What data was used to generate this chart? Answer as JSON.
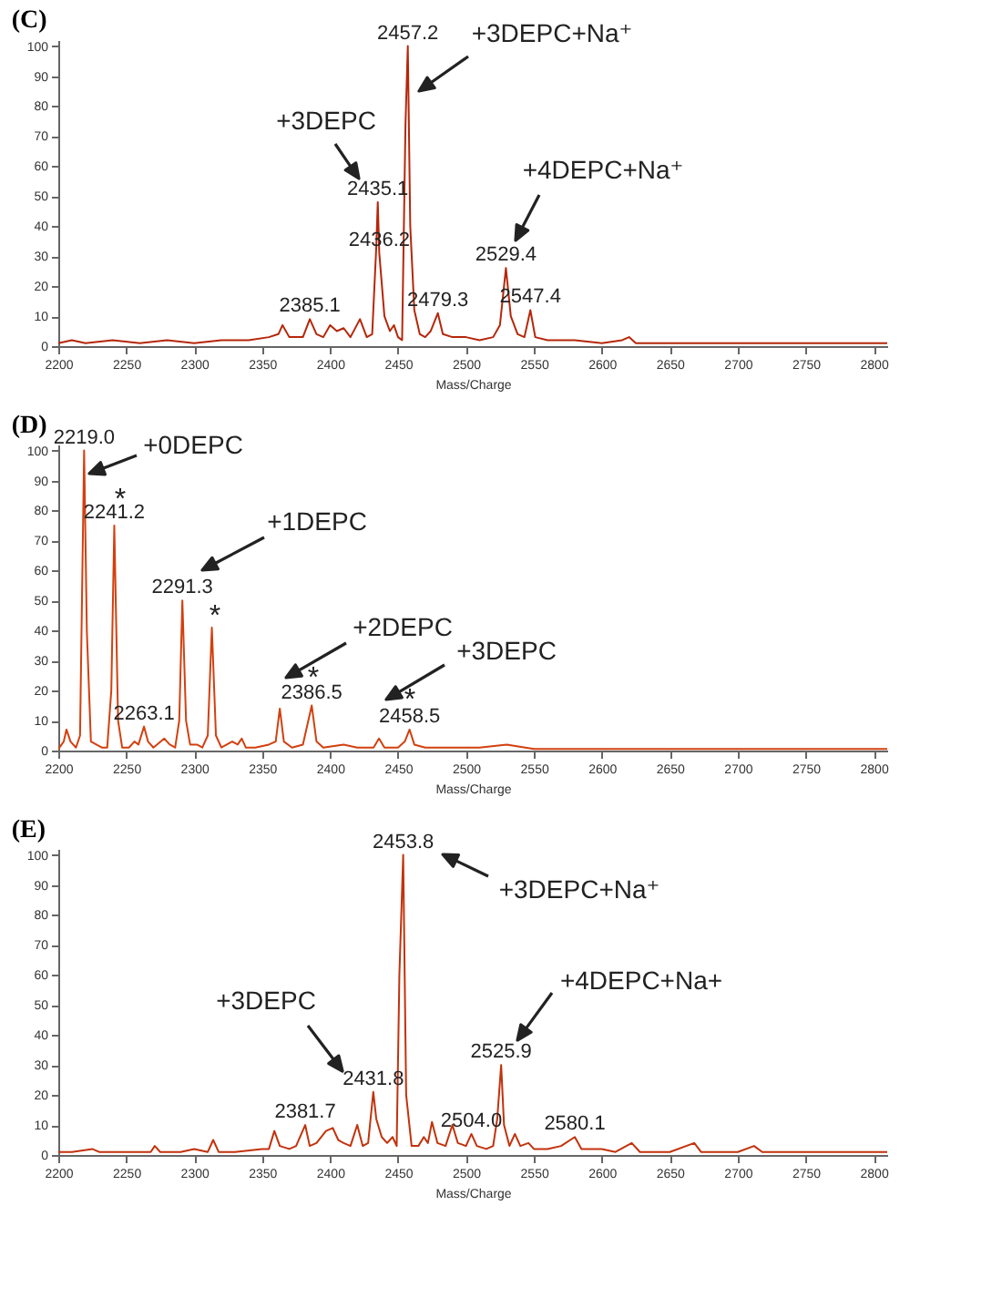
{
  "chart_data": [
    {
      "type": "line",
      "title": "(C)",
      "xlabel": "Mass/Charge",
      "xlim": [
        2200,
        2810
      ],
      "ylim": [
        0,
        102
      ],
      "xticks": [
        2200,
        2250,
        2300,
        2350,
        2400,
        2450,
        2500,
        2550,
        2600,
        2650,
        2700,
        2750,
        2800
      ],
      "yticks": [
        0,
        10,
        20,
        30,
        40,
        50,
        60,
        70,
        80,
        90,
        100
      ],
      "grid": false,
      "series": [
        {
          "color": "#b5270a",
          "x": [
            2200,
            2210,
            2220,
            2240,
            2260,
            2280,
            2300,
            2320,
            2340,
            2355,
            2362,
            2365,
            2370,
            2380,
            2385.1,
            2390,
            2395,
            2400,
            2405,
            2410,
            2415,
            2422,
            2427,
            2431,
            2434,
            2435.1,
            2436.2,
            2440,
            2444,
            2447,
            2450,
            2453,
            2455.5,
            2457.2,
            2459,
            2462,
            2466,
            2470,
            2474,
            2479.3,
            2483,
            2490,
            2500,
            2510,
            2520,
            2525,
            2529.4,
            2533,
            2538,
            2543,
            2547.4,
            2551,
            2560,
            2580,
            2600,
            2615,
            2620,
            2625,
            2650,
            2700,
            2750,
            2800,
            2810
          ],
          "values": [
            1,
            2,
            1,
            2,
            1,
            2,
            1,
            2,
            2,
            3,
            4,
            7,
            3,
            3,
            9,
            4,
            3,
            7,
            5,
            6,
            3,
            9,
            3,
            4,
            33,
            48,
            31,
            10,
            5,
            7,
            3,
            2,
            74,
            100,
            40,
            12,
            4,
            3,
            5,
            11,
            4,
            3,
            3,
            2,
            3,
            7,
            26,
            10,
            4,
            3,
            12,
            3,
            2,
            2,
            1,
            2,
            3,
            1,
            1,
            1,
            1,
            1,
            1
          ]
        }
      ],
      "annotations": [
        {
          "text": "2457.2",
          "x": 2457.2,
          "y": 100
        },
        {
          "text": "2435.1",
          "x": 2435.1,
          "y": 48
        },
        {
          "text": "2436.2",
          "x": 2436.2,
          "y": 31
        },
        {
          "text": "2385.1",
          "x": 2385.1,
          "y": 9
        },
        {
          "text": "2479.3",
          "x": 2479.3,
          "y": 11
        },
        {
          "text": "2529.4",
          "x": 2529.4,
          "y": 26
        },
        {
          "text": "2547.4",
          "x": 2547.4,
          "y": 12
        },
        "+3DEPC+Na⁺",
        "+3DEPC",
        "+4DEPC+Na⁺"
      ]
    },
    {
      "type": "line",
      "title": "(D)",
      "xlabel": "Mass/Charge",
      "xlim": [
        2200,
        2810
      ],
      "ylim": [
        0,
        102
      ],
      "xticks": [
        2200,
        2250,
        2300,
        2350,
        2400,
        2450,
        2500,
        2550,
        2600,
        2650,
        2700,
        2750,
        2800
      ],
      "yticks": [
        0,
        10,
        20,
        30,
        40,
        50,
        60,
        70,
        80,
        90,
        100
      ],
      "grid": false,
      "series": [
        {
          "color": "#d2400f",
          "x": [
            2200,
            2204,
            2206,
            2209,
            2213,
            2216,
            2219.0,
            2221,
            2224,
            2228,
            2232,
            2236,
            2239,
            2241.2,
            2244,
            2247,
            2252,
            2256,
            2259,
            2263.1,
            2266,
            2270,
            2278,
            2282,
            2286,
            2289,
            2291.3,
            2294,
            2297,
            2302,
            2306,
            2310,
            2313,
            2316,
            2320,
            2328,
            2332,
            2335,
            2338,
            2345,
            2355,
            2360,
            2363,
            2366,
            2372,
            2380,
            2386.5,
            2390,
            2395,
            2410,
            2420,
            2432,
            2436,
            2440,
            2450,
            2455,
            2458.5,
            2462,
            2470,
            2490,
            2510,
            2530,
            2550,
            2600,
            2700,
            2810
          ],
          "values": [
            0.5,
            3,
            7,
            3,
            1,
            5,
            100,
            40,
            3,
            2,
            1,
            1,
            20,
            75,
            10,
            1,
            1,
            3,
            2,
            8,
            3,
            1,
            4,
            2,
            1,
            10,
            50,
            10,
            2,
            2,
            1,
            5,
            41,
            5,
            1,
            3,
            2,
            4,
            1,
            1,
            2,
            3,
            14,
            3,
            1,
            2,
            15,
            3,
            1,
            2,
            1,
            1,
            4,
            1,
            1,
            3,
            7,
            2,
            1,
            1,
            1,
            2,
            0.5,
            0.5,
            0.5,
            0.5
          ]
        }
      ],
      "annotations": [
        {
          "text": "2219.0",
          "x": 2219.0,
          "y": 100
        },
        {
          "text": "2241.2",
          "x": 2241.2,
          "y": 75
        },
        {
          "text": "2263.1",
          "x": 2263.1,
          "y": 8
        },
        {
          "text": "2291.3",
          "x": 2291.3,
          "y": 50
        },
        {
          "text": "2386.5",
          "x": 2386.5,
          "y": 15
        },
        {
          "text": "2458.5",
          "x": 2458.5,
          "y": 7
        },
        "*",
        "*",
        "*",
        "*",
        "+0DEPC",
        "+1DEPC",
        "+2DEPC",
        "+3DEPC"
      ]
    },
    {
      "type": "line",
      "title": "(E)",
      "xlabel": "Mass/Charge",
      "xlim": [
        2200,
        2810
      ],
      "ylim": [
        0,
        102
      ],
      "xticks": [
        2200,
        2250,
        2300,
        2350,
        2400,
        2450,
        2500,
        2550,
        2600,
        2650,
        2700,
        2750,
        2800
      ],
      "yticks": [
        0,
        10,
        20,
        30,
        40,
        50,
        60,
        70,
        80,
        90,
        100
      ],
      "grid": false,
      "series": [
        {
          "color": "#c2320c",
          "x": [
            2200,
            2210,
            2225,
            2230,
            2250,
            2268,
            2271,
            2275,
            2290,
            2300,
            2310,
            2314,
            2318,
            2330,
            2350,
            2355,
            2359,
            2363,
            2370,
            2375,
            2381.7,
            2385,
            2390,
            2397,
            2402,
            2406,
            2410,
            2415,
            2420,
            2424,
            2428,
            2431.8,
            2434,
            2438,
            2442,
            2446,
            2449,
            2451,
            2453.8,
            2456,
            2460,
            2465,
            2469,
            2472,
            2475,
            2479,
            2485,
            2490,
            2494,
            2500,
            2504.0,
            2508,
            2515,
            2520,
            2523,
            2525.9,
            2528,
            2532,
            2536,
            2540,
            2546,
            2550,
            2560,
            2570,
            2580.1,
            2585,
            2600,
            2610,
            2622,
            2628,
            2650,
            2668,
            2673,
            2700,
            2712,
            2718,
            2750,
            2780,
            2810
          ],
          "values": [
            1,
            1,
            2,
            1,
            1,
            1,
            3,
            1,
            1,
            2,
            1,
            5,
            1,
            1,
            2,
            2,
            8,
            3,
            2,
            3,
            10,
            3,
            4,
            8,
            9,
            5,
            4,
            3,
            10,
            3,
            4,
            21,
            12,
            6,
            4,
            6,
            3,
            60,
            100,
            20,
            3,
            3,
            6,
            4,
            11,
            4,
            3,
            10,
            4,
            3,
            7,
            3,
            2,
            3,
            12,
            30,
            10,
            3,
            7,
            3,
            4,
            2,
            2,
            3,
            6,
            2,
            2,
            1,
            4,
            1,
            1,
            4,
            1,
            1,
            3,
            1,
            1,
            1,
            1
          ]
        }
      ],
      "annotations": [
        {
          "text": "2453.8",
          "x": 2453.8,
          "y": 100
        },
        {
          "text": "2431.8",
          "x": 2431.8,
          "y": 21
        },
        {
          "text": "2381.7",
          "x": 2381.7,
          "y": 10
        },
        {
          "text": "2504.0",
          "x": 2504.0,
          "y": 7
        },
        {
          "text": "2525.9",
          "x": 2525.9,
          "y": 30
        },
        {
          "text": "2580.1",
          "x": 2580.1,
          "y": 6
        },
        "+3DEPC+Na⁺",
        "+3DEPC",
        "+4DEPC+Na+"
      ]
    }
  ]
}
